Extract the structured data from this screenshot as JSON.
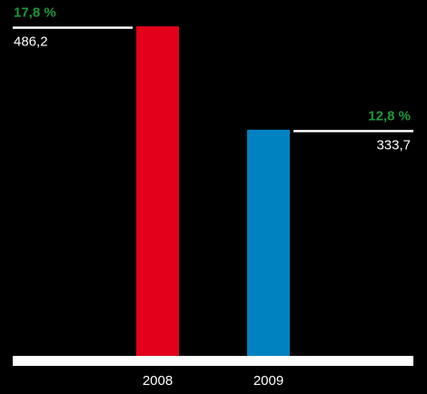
{
  "chart_data": {
    "type": "bar",
    "categories": [
      "2008",
      "2009"
    ],
    "values": [
      486.2,
      333.7
    ],
    "value_labels": [
      "486,2",
      "333,7"
    ],
    "percent_labels": [
      "17,8 %",
      "12,8 %"
    ],
    "bar_colors": [
      "#e2001a",
      "#0082c0"
    ],
    "percent_color": "#1a9a3a",
    "axis_color": "#ffffff",
    "background": "#000000",
    "grid": false,
    "legend": "none"
  }
}
